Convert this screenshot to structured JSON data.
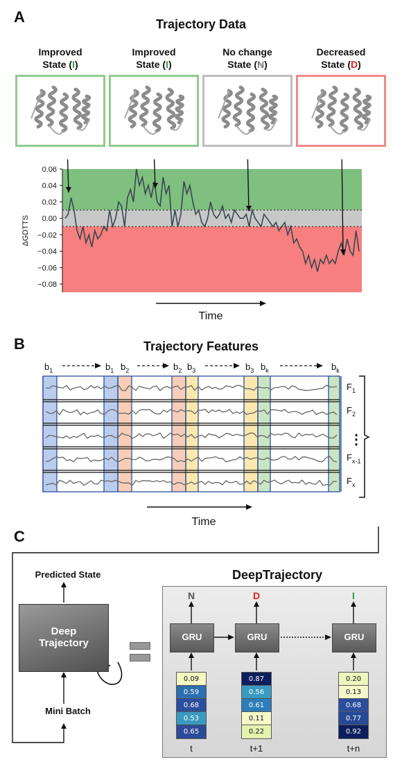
{
  "panel_a": {
    "letter": "A",
    "title": "Trajectory Data",
    "states": [
      {
        "line1": "Improved",
        "line2_pre": "State (",
        "code": "I",
        "line2_post": ")",
        "code_color": "#2e9e4f",
        "border": "#8ecb8e"
      },
      {
        "line1": "Improved",
        "line2_pre": "State (",
        "code": "I",
        "line2_post": ")",
        "code_color": "#2e9e4f",
        "border": "#8ecb8e"
      },
      {
        "line1": "No change",
        "line2_pre": "State (",
        "code": "N",
        "line2_post": ")",
        "code_color": "#777777",
        "border": "#bdbdbd"
      },
      {
        "line1": "Decreased",
        "line2_pre": "State (",
        "code": "D",
        "line2_post": ")",
        "code_color": "#e02020",
        "border": "#ef8a8a"
      }
    ],
    "ylabel": "ΔGDTTS",
    "xlabel": "Time",
    "yticks": [
      "0.06",
      "0.04",
      "0.02",
      "0.00",
      "−0.02",
      "−0.04",
      "−0.06",
      "−0.08"
    ],
    "colors": {
      "improved": "#7fbf7f",
      "nochange": "#c8c8c8",
      "decreased": "#f77f7f",
      "line": "#37474f"
    }
  },
  "chart_data": {
    "type": "line",
    "ylabel": "ΔGDTTS",
    "xlabel": "Time",
    "ylim": [
      -0.09,
      0.06
    ],
    "bands": [
      {
        "name": "Improved",
        "from": 0.01,
        "to": 0.06
      },
      {
        "name": "No change",
        "from": -0.01,
        "to": 0.01
      },
      {
        "name": "Decreased",
        "from": -0.09,
        "to": -0.01
      }
    ],
    "series": [
      {
        "values": [
          0.0,
          0.005,
          0.025,
          0.01,
          -0.015,
          -0.025,
          -0.01,
          -0.03,
          -0.02,
          -0.035,
          -0.015,
          -0.025,
          -0.02,
          -0.01,
          -0.015,
          0.01,
          -0.01,
          0.0,
          0.02,
          0.015,
          -0.01,
          0.025,
          0.035,
          0.02,
          0.06,
          0.04,
          0.05,
          0.03,
          0.04,
          0.025,
          0.045,
          0.02,
          0.015,
          0.05,
          0.03,
          0.04,
          -0.01,
          0.01,
          -0.01,
          0.005,
          0.045,
          0.03,
          0.04,
          0.02,
          0.005,
          0.01,
          -0.005,
          -0.01,
          0.0,
          0.02,
          0.005,
          0.0,
          0.005,
          0.015,
          0.0,
          0.005,
          -0.005,
          0.01,
          0.005,
          0.0,
          0.0,
          0.005,
          -0.01,
          0.01,
          0.0,
          -0.005,
          -0.01,
          0.005,
          0.0,
          -0.005,
          -0.01,
          -0.005,
          -0.015,
          -0.01,
          -0.005,
          -0.02,
          -0.01,
          -0.03,
          -0.025,
          -0.035,
          -0.04,
          -0.055,
          -0.045,
          -0.06,
          -0.05,
          -0.065,
          -0.05,
          -0.055,
          -0.045,
          -0.055,
          -0.05,
          -0.055,
          -0.04,
          -0.03,
          -0.045,
          -0.025,
          -0.04,
          -0.045,
          -0.015,
          -0.04
        ]
      }
    ]
  },
  "panel_b": {
    "letter": "B",
    "title": "Trajectory Features",
    "xlabel": "Time",
    "window_labels": [
      {
        "base": "b",
        "sub": "1"
      },
      {
        "base": "b",
        "sub": "1"
      },
      {
        "base": "b",
        "sub": "2"
      },
      {
        "base": "b",
        "sub": "2"
      },
      {
        "base": "b",
        "sub": "3"
      },
      {
        "base": "b",
        "sub": "3"
      },
      {
        "base": "b",
        "sub": "k"
      },
      {
        "base": "b",
        "sub": "k"
      }
    ],
    "feature_labels": [
      {
        "base": "F",
        "sub": "1"
      },
      {
        "base": "F",
        "sub": "2"
      },
      {
        "base": "F",
        "sub": "x-1"
      },
      {
        "base": "F",
        "sub": "x"
      }
    ],
    "ellipsis": "⋮",
    "window_colors": [
      "#aec4ea",
      "#f6c6a8",
      "#fbe3a0",
      "#bfe0b8"
    ]
  },
  "panel_c": {
    "letter": "C",
    "title": "DeepTrajectory",
    "model_box_label_1": "Deep",
    "model_box_label_2": "Trajectory",
    "predicted_state": "Predicted State",
    "mini_batch": "Mini Batch",
    "gru_label": "GRU",
    "outputs": [
      {
        "label": "N",
        "color": "#555555"
      },
      {
        "label": "D",
        "color": "#e02020"
      },
      {
        "label": "I",
        "color": "#2e9e4f"
      }
    ],
    "time_labels": [
      "t",
      "t+1",
      "t+n"
    ],
    "vectors": [
      [
        "0.09",
        "0.59",
        "0.68",
        "0.53",
        "0.65"
      ],
      [
        "0.87",
        "0.56",
        "0.61",
        "0.11",
        "0.22"
      ],
      [
        "0.20",
        "0.13",
        "0.68",
        "0.77",
        "0.92"
      ]
    ],
    "cell_colors": {
      "0.09": "#f3f8c4",
      "0.59": "#2d6fb0",
      "0.68": "#2b4f9e",
      "0.53": "#3a9ac0",
      "0.65": "#2c4a98",
      "0.87": "#0c1f5c",
      "0.56": "#3a9ac0",
      "0.61": "#2d7db8",
      "0.11": "#f5f9c8",
      "0.22": "#e6f2b0",
      "0.20": "#eef6bf",
      "0.13": "#f5f9ca",
      "0.77": "#264a96",
      "0.92": "#0c1f5c"
    }
  }
}
